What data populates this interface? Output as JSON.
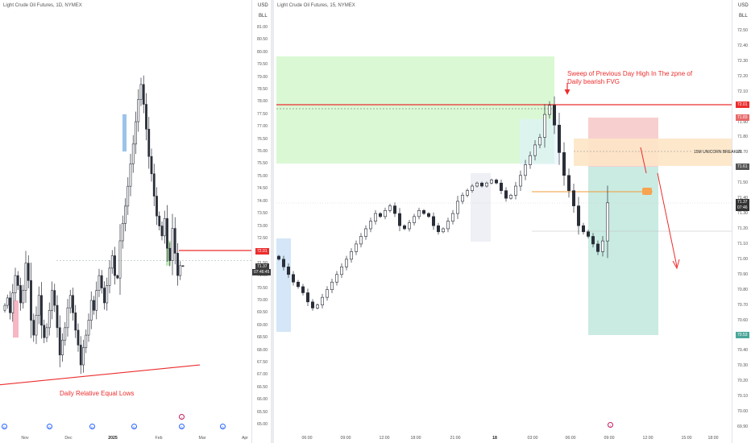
{
  "left_chart": {
    "symbol_title": "Light Crude Oil Futures, 1D, NYMEX",
    "currency": "USD",
    "unit": "BLL",
    "y_ticks": [
      "81.00",
      "80.50",
      "80.00",
      "79.50",
      "79.00",
      "78.50",
      "78.00",
      "77.50",
      "77.00",
      "76.50",
      "76.00",
      "75.50",
      "75.00",
      "74.50",
      "74.00",
      "73.50",
      "73.00",
      "72.50",
      "72.00",
      "71.50",
      "71.00",
      "70.50",
      "70.00",
      "69.50",
      "69.00",
      "68.50",
      "68.00",
      "67.50",
      "67.00",
      "66.50",
      "66.00",
      "65.50",
      "65.00"
    ],
    "x_ticks": [
      "Nov",
      "Dec",
      "2025",
      "Feb",
      "Mar",
      "Apr"
    ],
    "price_tag": "72.01",
    "current_price": "71.37",
    "countdown": "07:46:45",
    "annotation": "Daily Relative Equal Lows",
    "colors": {
      "key_level": "#ec2d2d",
      "trendline": "#ec2d2d",
      "up_candle": "#ffffff",
      "down_candle": "#2a2e39"
    }
  },
  "right_chart": {
    "symbol_title": "Light Crude Oil Futures, 15, NYMEX",
    "currency": "USD",
    "unit": "BLL",
    "y_ticks": [
      "72.50",
      "72.40",
      "72.30",
      "72.20",
      "72.10",
      "72.00",
      "71.90",
      "71.80",
      "71.70",
      "71.60",
      "71.50",
      "71.40",
      "71.30",
      "71.20",
      "71.10",
      "71.00",
      "70.90",
      "70.80",
      "70.70",
      "70.60",
      "70.50",
      "70.40",
      "70.30",
      "70.20",
      "70.10",
      "70.00",
      "69.90"
    ],
    "x_ticks": [
      "06:00",
      "09:00",
      "12:00",
      "18:00",
      "21:00",
      "18",
      "03:00",
      "06:00",
      "09:00",
      "12:00",
      "15:00",
      "18:00"
    ],
    "price_tags": {
      "high": "72.01",
      "stop": "71.83",
      "entry": "71.61",
      "current": "71.37",
      "countdown": "07:46",
      "target": "70.53"
    },
    "annotation_sweep": "Sweep of Previous Day High In The zpne of",
    "annotation_sweep_line2": "Daily  bearish FVG",
    "annotation_breaker": "15M UNICORN BREAKER",
    "colors": {
      "fvg_zone": "#c8f5c0",
      "short_stop_zone": "#f7c6c6",
      "target_zone": "#bfe6dc",
      "breaker_zone": "#fde3c0",
      "key_level": "#ec2d2d",
      "entry_marker": "#f7a350"
    }
  },
  "chart_data": [
    {
      "type": "candlestick",
      "title": "Light Crude Oil Futures, 1D, NYMEX",
      "xlabel": "",
      "ylabel": "USD / BLL",
      "x_ticks": [
        "Nov",
        "Dec",
        "2025",
        "Feb",
        "Mar",
        "Apr"
      ],
      "ylim": [
        65.0,
        81.0
      ],
      "series": [
        {
          "close": [
            69.8,
            70.1,
            69.5,
            70.3,
            71.0,
            70.6,
            69.9,
            70.4,
            71.5,
            70.8,
            69.2,
            68.6,
            69.4,
            70.2,
            69.0,
            68.5,
            68.9,
            69.6,
            70.4,
            69.8,
            68.9,
            67.8,
            68.4,
            68.9,
            69.7,
            70.2,
            69.5,
            68.8,
            68.2,
            67.4,
            68.1,
            68.6,
            69.2,
            70.0,
            69.6,
            70.4,
            71.0,
            70.5,
            69.9,
            70.6,
            71.3,
            71.8,
            71.0,
            70.9,
            72.4,
            73.1,
            73.8,
            74.6,
            75.5,
            76.3,
            77.2,
            78.1,
            78.7,
            77.9,
            76.9,
            75.8,
            75.1,
            74.2,
            73.4,
            73.0,
            72.6,
            73.3,
            72.1,
            71.6,
            72.9,
            71.9,
            71.0,
            71.4,
            71.37
          ]
        }
      ],
      "key_level": 72.01,
      "last_price": 71.37,
      "annotations": [
        "Daily Relative Equal Lows"
      ]
    },
    {
      "type": "candlestick",
      "title": "Light Crude Oil Futures, 15, NYMEX",
      "xlabel": "",
      "ylabel": "USD / BLL",
      "x_ticks": [
        "06:00",
        "09:00",
        "12:00",
        "18:00",
        "21:00",
        "18",
        "03:00",
        "06:00",
        "09:00",
        "12:00",
        "15:00",
        "18:00"
      ],
      "ylim": [
        69.9,
        72.5
      ],
      "series": [
        {
          "close": [
            71.0,
            70.95,
            70.9,
            70.85,
            70.82,
            70.78,
            70.72,
            70.68,
            70.7,
            70.75,
            70.8,
            70.85,
            70.9,
            70.95,
            71.0,
            71.05,
            71.1,
            71.15,
            71.2,
            71.25,
            71.3,
            71.28,
            71.32,
            71.35,
            71.3,
            71.22,
            71.2,
            71.24,
            71.28,
            71.32,
            71.3,
            71.28,
            71.22,
            71.18,
            71.2,
            71.25,
            71.3,
            71.38,
            71.42,
            71.45,
            71.48,
            71.5,
            71.48,
            71.5,
            71.52,
            71.5,
            71.45,
            71.4,
            71.42,
            71.48,
            71.55,
            71.62,
            71.68,
            71.75,
            71.8,
            71.95,
            72.01,
            71.88,
            71.7,
            71.55,
            71.45,
            71.35,
            71.22,
            71.18,
            71.15,
            71.1,
            71.05,
            71.12,
            71.37
          ]
        }
      ],
      "levels": {
        "previous_day_high": 72.01,
        "stop": 71.83,
        "entry": 71.61,
        "target": 70.53
      },
      "annotations": [
        "Sweep of Previous Day High In The zpne of Daily  bearish FVG",
        "15M UNICORN BREAKER"
      ]
    }
  ]
}
